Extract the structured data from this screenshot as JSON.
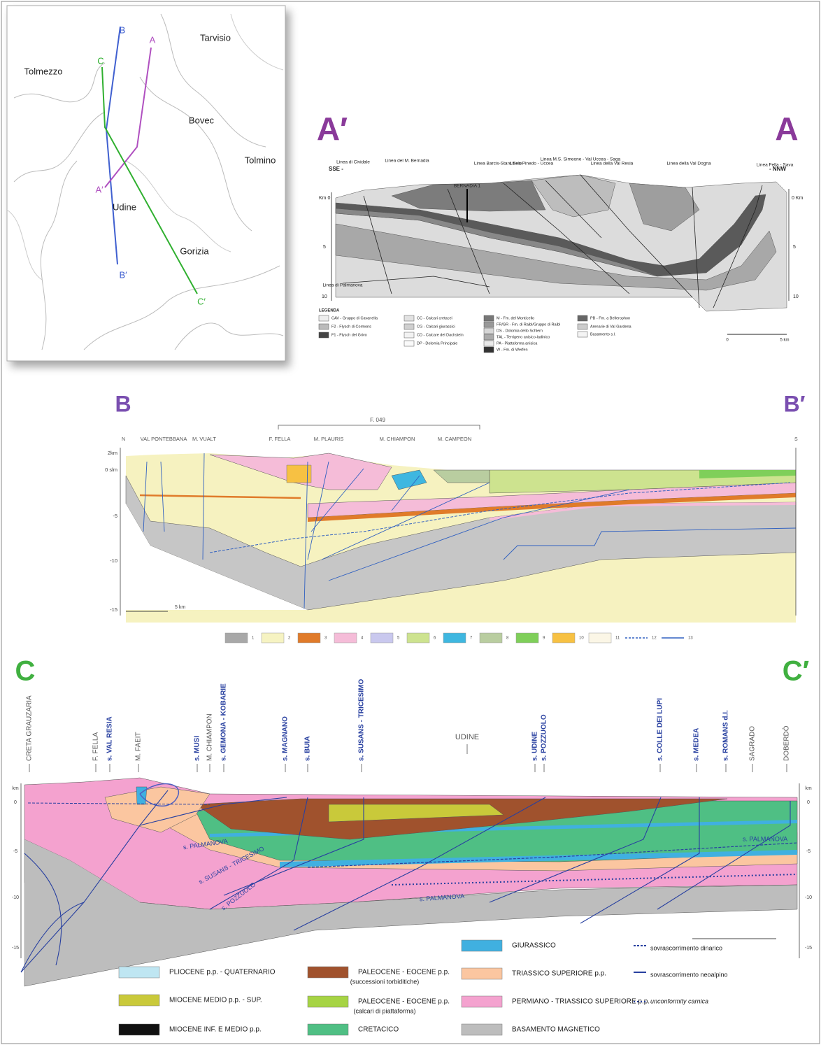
{
  "map": {
    "places": [
      "Tarvisio",
      "Tolmezzo",
      "Bovec",
      "Tolmino",
      "Udine",
      "Gorizia"
    ],
    "traces": [
      "B",
      "A",
      "C",
      "A′",
      "B′",
      "C′"
    ]
  },
  "section_a": {
    "end_left": "A′",
    "end_right": "A",
    "dir_left": "SSE -",
    "dir_right": "- NNW",
    "faults": [
      "Linea di Cividale",
      "Linea del M. Bernadia",
      "BERNADIA 1",
      "Linea Barcis-Staro Selo",
      "Linea Pinedo - Uccea",
      "Linea M.S. Simeone - Val Uccea - Saga",
      "Linea della Val Resia",
      "Linea della Val Dogna",
      "Linea Fella - Sava",
      "Linea di Palmanova"
    ],
    "depth_left": [
      "Km 0",
      "5",
      "10"
    ],
    "depth_right": [
      "0 Km",
      "5",
      "10"
    ],
    "legend_title": "LEGENDA",
    "legend": [
      "CAV - Gruppo di Cavanella",
      "F2 - Flysch di Cormons",
      "F1 - Flysch del Grivo",
      "CC - Calcari cretacei",
      "CG - Calcari giurassici",
      "CD - Calcare del Dachstein",
      "DP - Dolomia Principale",
      "M - Fm. del Monticello",
      "FR/GR - Fm. di Raibl/Gruppo di Raibl",
      "DS - Dolomia dello Schlern",
      "TAL - Terrigeno anisico-ladinico",
      "PA - Piattaforma anisica",
      "W - Fm. di Werfen",
      "PB - Fm. a Bellerophon",
      "Arenarie di Val Gardena",
      "Basamento s.l."
    ],
    "scale": [
      "0",
      "5 km"
    ]
  },
  "section_b": {
    "end_left": "B",
    "end_right": "B′",
    "dir_left": "N",
    "dir_right": "S",
    "places": [
      "VAL PONTEBBANA",
      "M. VUALT",
      "F. FELLA",
      "M. PLAURIS",
      "M. CHIAMPON",
      "M. CAMPEON"
    ],
    "sheet": "F. 049",
    "depth": [
      "2km",
      "0 slm",
      "-5",
      "-10",
      "-15"
    ],
    "scale": "5 km",
    "legend": [
      "1",
      "2",
      "3",
      "4",
      "5",
      "6",
      "7",
      "8",
      "9",
      "10",
      "11",
      "12",
      "13"
    ]
  },
  "section_c": {
    "end_left": "C",
    "end_right": "C′",
    "top_labels": [
      "CRETA GRAUZARIA",
      "F. FELLA",
      "s. VAL RESIA",
      "M. FAEIT",
      "s. MUSI",
      "M. CHIAMPON",
      "s. GEMONA - KOBARIE",
      "s. MAGNANO",
      "s. BUIA",
      "s. SUSANS - TRICESIMO",
      "UDINE",
      "s. UDINE",
      "s. POZZUOLO",
      "s. COLLE DEI LUPI",
      "s. MEDEA",
      "s. ROMANS d.I.",
      "SAGRADO",
      "DOBERDÒ"
    ],
    "inner_labels": [
      "s. PALMANOVA",
      "s. SUSANS - TRICESIMO",
      "s. POZZUOLO",
      "s. PALMANOVA",
      "s. PALMANOVA"
    ],
    "depth_left": [
      "km",
      "0",
      "-5",
      "-10",
      "-15"
    ],
    "depth_right": [
      "km",
      "0",
      "-5",
      "-10",
      "-15"
    ],
    "legend": [
      "PLIOCENE p.p. - QUATERNARIO",
      "MIOCENE MEDIO p.p. - SUP.",
      "MIOCENE INF. E MEDIO p.p.",
      "PALEOCENE - EOCENE p.p.",
      "(successioni torbiditiche)",
      "PALEOCENE - EOCENE p.p.",
      "(calcari di piattaforma)",
      "CRETACICO",
      "GIURASSICO",
      "TRIASSICO SUPERIORE p.p.",
      "PERMIANO - TRIASSICO SUPERIORE p.p.",
      "BASAMENTO MAGNETICO",
      "sovrascorrimento dinarico",
      "sovrascorrimento neoalpino",
      "unconformity carnica"
    ]
  }
}
